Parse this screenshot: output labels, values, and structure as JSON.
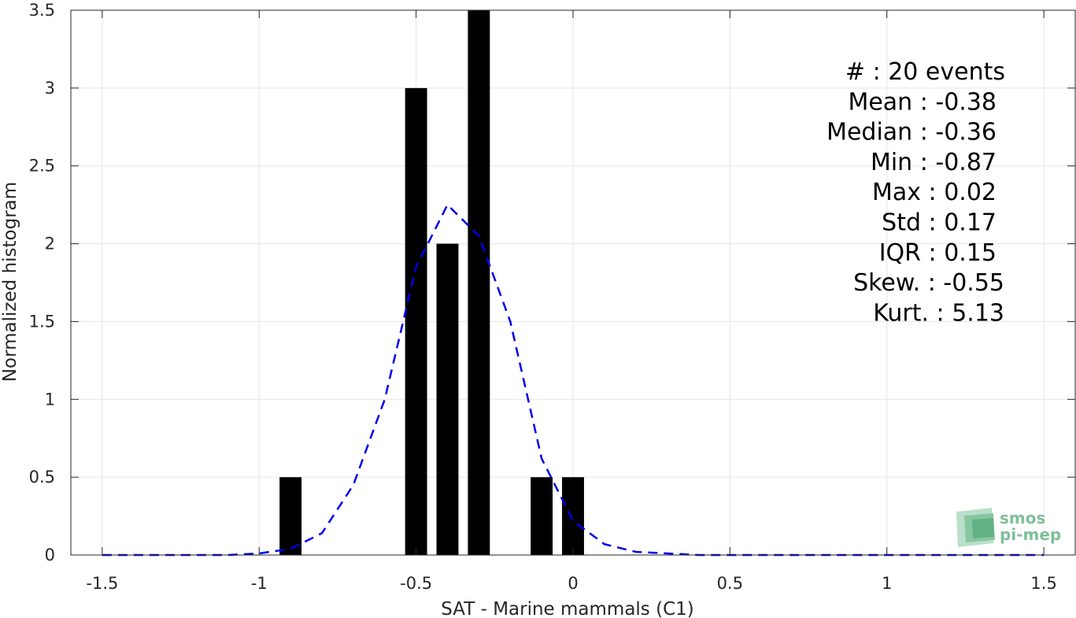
{
  "chart_data": {
    "type": "bar",
    "xlabel": "SAT - Marine mammals (C1)",
    "ylabel": "Normalized histogram",
    "xlim": [
      -1.6,
      1.6
    ],
    "ylim": [
      0,
      3.5
    ],
    "grid": true,
    "x_ticks": [
      -1.5,
      -1,
      -0.5,
      0,
      0.5,
      1,
      1.5
    ],
    "x_tick_labels": [
      "-1.5",
      "-1",
      "-0.5",
      "0",
      "0.5",
      "1",
      "1.5"
    ],
    "y_ticks": [
      0,
      0.5,
      1,
      1.5,
      2,
      2.5,
      3,
      3.5
    ],
    "y_tick_labels": [
      "0",
      "0.5",
      "1",
      "1.5",
      "2",
      "2.5",
      "3",
      "3.5"
    ],
    "bar_color": "#000000",
    "bars": [
      {
        "x": -0.9,
        "value": 0.5
      },
      {
        "x": -0.5,
        "value": 3.0
      },
      {
        "x": -0.4,
        "value": 2.0
      },
      {
        "x": -0.3,
        "value": 3.5
      },
      {
        "x": -0.1,
        "value": 0.5
      },
      {
        "x": 0.0,
        "value": 0.5
      }
    ],
    "bar_width": 0.07,
    "fit_curve": {
      "style": "dashed",
      "color": "#0000ee",
      "x": [
        -1.5,
        -1.4,
        -1.3,
        -1.2,
        -1.1,
        -1.0,
        -0.9,
        -0.8,
        -0.7,
        -0.6,
        -0.5,
        -0.4,
        -0.3,
        -0.2,
        -0.1,
        0.0,
        0.1,
        0.2,
        0.3,
        0.4,
        0.5,
        0.6,
        0.7,
        0.8,
        0.9,
        1.0,
        1.1,
        1.2,
        1.3,
        1.4,
        1.5
      ],
      "y": [
        0,
        0,
        0,
        0,
        0,
        0.01,
        0.04,
        0.14,
        0.45,
        1.0,
        1.85,
        2.25,
        2.05,
        1.5,
        0.62,
        0.22,
        0.07,
        0.02,
        0.01,
        0,
        0,
        0,
        0,
        0,
        0,
        0,
        0,
        0,
        0,
        0,
        0
      ]
    },
    "stats_lines": [
      "#  : 20 events",
      "Mean : -0.38",
      "Median : -0.36",
      "Min : -0.87",
      "Max : 0.02",
      "Std : 0.17",
      "IQR : 0.15",
      "Skew. : -0.55",
      "Kurt. : 5.13"
    ]
  },
  "logo": {
    "line1": "smos",
    "line2": "pi-mep",
    "color": "#7fbf9a"
  }
}
